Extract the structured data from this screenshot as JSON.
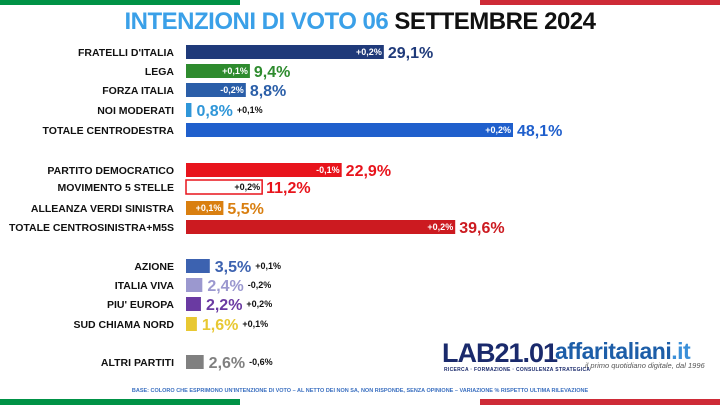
{
  "title": {
    "part1": "INTENZIONI DI VOTO 06",
    "part2": "SETTEMBRE 2024"
  },
  "colors": {
    "flag_green": "#009246",
    "flag_white": "#ffffff",
    "flag_red": "#ce2b37",
    "title_blue": "#3aa0e8"
  },
  "logos": {
    "lab": "LAB21.01",
    "lab_sub": "RICERCA · FORMAZIONE · CONSULENZA STRATEGICA",
    "affari": "affaritaliani",
    "affari_tld": ".it",
    "affari_sub": "il primo quotidiano digitale, dal 1996"
  },
  "footnote": "BASE: COLORO CHE ESPRIMONO UN'INTENZIONE DI VOTO – AL NETTO DEI NON SA, NON RISPONDE, SENZA OPINIONE – VARIAZIONE % RISPETTO ULTIMA RILEVAZIONE",
  "chart_data": {
    "type": "bar",
    "orientation": "horizontal",
    "categories": [
      "FRATELLI D'ITALIA",
      "LEGA",
      "FORZA ITALIA",
      "NOI MODERATI",
      "TOTALE CENTRODESTRA",
      "PARTITO DEMOCRATICO",
      "MOVIMENTO 5 STELLE",
      "ALLEANZA VERDI SINISTRA",
      "TOTALE CENTROSINISTRA+M5S",
      "AZIONE",
      "ITALIA VIVA",
      "PIU' EUROPA",
      "SUD CHIAMA NORD",
      "ALTRI PARTITI"
    ],
    "values": [
      29.1,
      9.4,
      8.8,
      0.8,
      48.1,
      22.9,
      11.2,
      5.5,
      39.6,
      3.5,
      2.4,
      2.2,
      1.6,
      2.6
    ],
    "value_labels": [
      "29,1%",
      "9,4%",
      "8,8%",
      "0,8%",
      "48,1%",
      "22,9%",
      "11,2%",
      "5,5%",
      "39,6%",
      "3,5%",
      "2,4%",
      "2,2%",
      "1,6%",
      "2,6%"
    ],
    "changes": [
      "+0,2%",
      "+0,1%",
      "-0,2%",
      "+0,1%",
      "+0,2%",
      "-0,1%",
      "+0,2%",
      "+0,1%",
      "+0,2%",
      "+0,1%",
      "-0,2%",
      "+0,2%",
      "+0,1%",
      "-0,6%"
    ],
    "change_inside": [
      true,
      true,
      true,
      false,
      true,
      true,
      true,
      true,
      true,
      false,
      false,
      false,
      false,
      false
    ],
    "colors": [
      "#1f3a7a",
      "#2e8b2e",
      "#2a5ea8",
      "#2f96d8",
      "#1f5fcc",
      "#e8141c",
      "#ffffff",
      "#d97f10",
      "#cc1a20",
      "#3c62b0",
      "#9b98cf",
      "#6a3aa2",
      "#e8c832",
      "#808080"
    ],
    "label_colors": [
      "#1f3a7a",
      "#2e8b2e",
      "#2a5ea8",
      "#2f96d8",
      "#1f5fcc",
      "#e8141c",
      "#e8141c",
      "#d97f10",
      "#cc1a20",
      "#3c62b0",
      "#9b98cf",
      "#6a3aa2",
      "#e8c832",
      "#808080"
    ],
    "xlim": [
      0,
      48.1
    ]
  }
}
